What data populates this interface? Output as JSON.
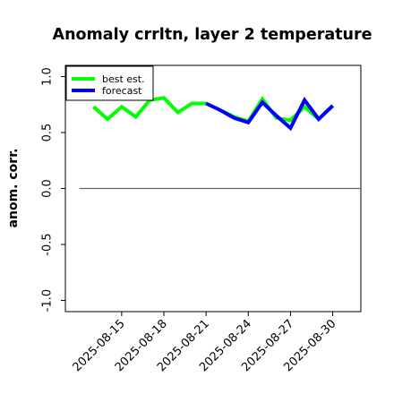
{
  "chart_data": {
    "type": "line",
    "title": "Anomaly crrltn, layer 2 temperature",
    "xlabel": "",
    "ylabel": "anom. corr.",
    "ylim": [
      -1.1,
      1.1
    ],
    "yticks": [
      -1.0,
      -0.5,
      0.0,
      0.5,
      1.0
    ],
    "ytick_labels": [
      "-1.0",
      "-0.5",
      "0.0",
      "0.5",
      "1.0"
    ],
    "xlim": [
      "2025-08-11",
      "2025-09-01"
    ],
    "xticks": [
      "2025-08-15",
      "2025-08-18",
      "2025-08-21",
      "2025-08-24",
      "2025-08-27",
      "2025-08-30"
    ],
    "xtick_colors": [
      "#000000",
      "#000000",
      "#228B22",
      "#000000",
      "#000000",
      "#000000"
    ],
    "grid": false,
    "legend": {
      "location": "top-left"
    },
    "reference_line": {
      "y": 0.0,
      "from": "2025-08-12",
      "to": "2025-09-01",
      "color": "#666666"
    },
    "series": [
      {
        "name": "best est.",
        "color": "#00ff00",
        "x": [
          "2025-08-13",
          "2025-08-14",
          "2025-08-15",
          "2025-08-16",
          "2025-08-17",
          "2025-08-18",
          "2025-08-19",
          "2025-08-20",
          "2025-08-21",
          "2025-08-22",
          "2025-08-23",
          "2025-08-24",
          "2025-08-25",
          "2025-08-26",
          "2025-08-27",
          "2025-08-28",
          "2025-08-29",
          "2025-08-30"
        ],
        "values": [
          0.73,
          0.62,
          0.73,
          0.64,
          0.79,
          0.81,
          0.68,
          0.76,
          0.76,
          0.7,
          0.64,
          0.6,
          0.8,
          0.63,
          0.61,
          0.73,
          0.62,
          0.74
        ]
      },
      {
        "name": "forecast",
        "color": "#0000ff",
        "x": [
          "2025-08-21",
          "2025-08-22",
          "2025-08-23",
          "2025-08-24",
          "2025-08-25",
          "2025-08-26",
          "2025-08-27",
          "2025-08-28",
          "2025-08-29",
          "2025-08-30"
        ],
        "values": [
          0.76,
          0.7,
          0.63,
          0.59,
          0.77,
          0.65,
          0.54,
          0.79,
          0.62,
          0.74
        ]
      }
    ]
  }
}
